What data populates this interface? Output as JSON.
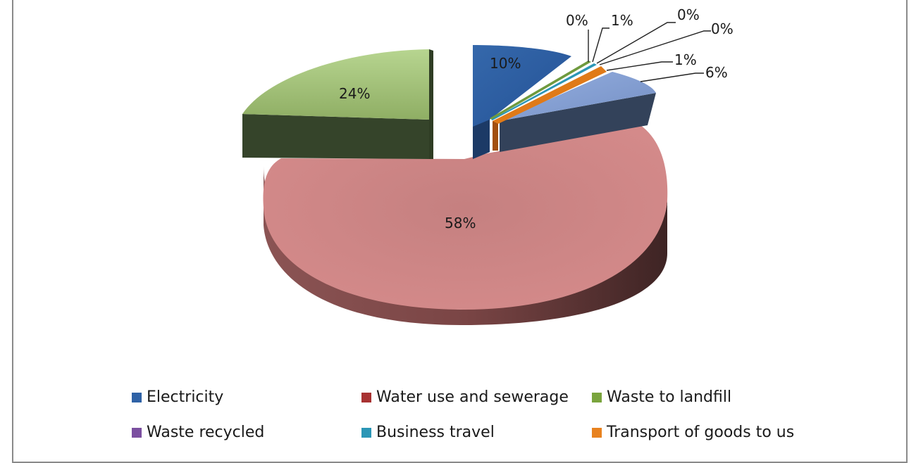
{
  "chart_data": {
    "type": "pie",
    "variant": "3d-exploded",
    "title": "",
    "slices": [
      {
        "name": "Electricity",
        "value": 10,
        "label": "10%",
        "color": "#2f62a6"
      },
      {
        "name": "Water use and sewerage",
        "value": 58,
        "label": "58%",
        "color": "#c97878"
      },
      {
        "name": "Waste to landfill",
        "value": 24,
        "label": "24%",
        "color": "#a3c27a"
      },
      {
        "name": "Waste recycled",
        "value": 0,
        "label": "0%",
        "color": "#7b4fa0"
      },
      {
        "name": "Business travel",
        "value": 0,
        "label": "0%",
        "color": "#2b96b6"
      },
      {
        "name": "Transport of goods to us",
        "value": 1,
        "label": "1%",
        "color": "#e8821f"
      },
      {
        "name": "",
        "value": 0,
        "label": "0%",
        "color": "#6f9a3e"
      },
      {
        "name": "",
        "value": 1,
        "label": "1%",
        "color": "#e07a18"
      },
      {
        "name": "",
        "value": 6,
        "label": "6%",
        "color": "#7f9bd0"
      }
    ],
    "legend_position": "bottom"
  },
  "legend": [
    {
      "label": "Electricity",
      "color": "#2f62a6"
    },
    {
      "label": "Water use and sewerage",
      "color": "#a83232"
    },
    {
      "label": "Waste to landfill",
      "color": "#7aa43d"
    },
    {
      "label": "Waste recycled",
      "color": "#7b4fa0"
    },
    {
      "label": "Business travel",
      "color": "#2b96b6"
    },
    {
      "label": "Transport of goods to us",
      "color": "#e8821f"
    }
  ]
}
